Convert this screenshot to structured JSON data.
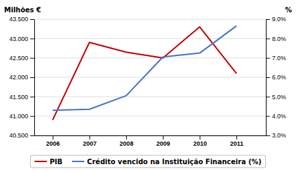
{
  "chart_data": {
    "type": "line",
    "ylabel": "Milhões €",
    "y2label": "%",
    "x": [
      2006,
      2007,
      2008,
      2009,
      2010,
      2011
    ],
    "xlim": [
      2005.5,
      2011.8
    ],
    "xticks": [
      2006,
      2007,
      2008,
      2009,
      2010,
      2011
    ],
    "ylim": [
      40500,
      43500
    ],
    "yticks": [
      {
        "value": 40500,
        "label": "40.500"
      },
      {
        "value": 41000,
        "label": "41.000"
      },
      {
        "value": 41500,
        "label": "41.500"
      },
      {
        "value": 42000,
        "label": "42.000"
      },
      {
        "value": 42500,
        "label": "42.500"
      },
      {
        "value": 43000,
        "label": "43.000"
      },
      {
        "value": 43500,
        "label": "43.500"
      }
    ],
    "y2lim": [
      3.0,
      9.0
    ],
    "y2ticks": [
      {
        "value": 3.0,
        "label": "3.0%"
      },
      {
        "value": 4.0,
        "label": "4.0%"
      },
      {
        "value": 5.0,
        "label": "5.0%"
      },
      {
        "value": 6.0,
        "label": "6.0%"
      },
      {
        "value": 7.0,
        "label": "7.0%"
      },
      {
        "value": 8.0,
        "label": "8.0%"
      },
      {
        "value": 9.0,
        "label": "9.0%"
      }
    ],
    "grid": true,
    "legend": "bottom",
    "series": [
      {
        "name": "PIB",
        "color": "#c00000",
        "values": [
          40900,
          42900,
          42650,
          42500,
          43300,
          42100
        ]
      },
      {
        "name": "Crédito vencido na Instituição Financeira (%)",
        "color": "#4472c4",
        "axis": "y2",
        "values": [
          4.3,
          4.35,
          5.05,
          7.05,
          7.25,
          8.65
        ]
      }
    ]
  }
}
